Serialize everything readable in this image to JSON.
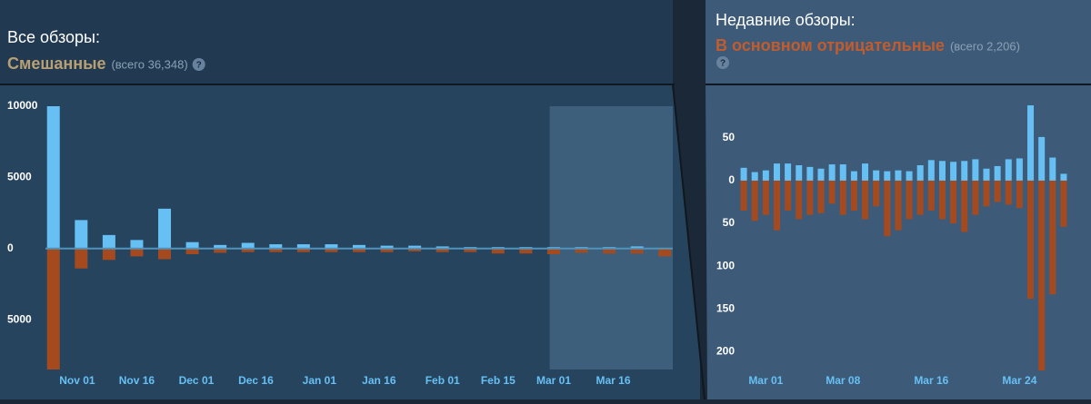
{
  "chart_data": [
    {
      "type": "bar",
      "title": "Все обзоры:",
      "subtitle": "Смешанные",
      "note": "(всего 36,348)",
      "help": "?",
      "x": [
        0,
        7,
        14,
        21,
        28,
        35,
        42,
        49,
        56,
        63,
        70,
        77,
        84,
        91,
        98,
        105,
        112,
        119,
        126,
        133,
        140,
        147,
        154
      ],
      "series": [
        {
          "color": "#66c0f4",
          "values": [
            10000,
            2000,
            950,
            600,
            2800,
            450,
            250,
            400,
            300,
            300,
            300,
            250,
            200,
            200,
            150,
            100,
            100,
            100,
            100,
            100,
            100,
            150,
            50
          ]
        },
        {
          "color": "#a54a1f",
          "values": [
            -8500,
            -1400,
            -800,
            -550,
            -750,
            -400,
            -300,
            -250,
            -250,
            -250,
            -250,
            -250,
            -250,
            -200,
            -250,
            -250,
            -350,
            -350,
            -400,
            -300,
            -350,
            -350,
            -550
          ]
        }
      ],
      "xlim": [
        -2,
        156
      ],
      "xticks": [
        {
          "value": 6,
          "label": "Nov 01"
        },
        {
          "value": 21,
          "label": "Nov 16"
        },
        {
          "value": 36,
          "label": "Dec 01"
        },
        {
          "value": 51,
          "label": "Dec 16"
        },
        {
          "value": 67,
          "label": "Jan 01"
        },
        {
          "value": 82,
          "label": "Jan 16"
        },
        {
          "value": 98,
          "label": "Feb 01"
        },
        {
          "value": 112,
          "label": "Feb 15"
        },
        {
          "value": 126,
          "label": "Mar 01"
        },
        {
          "value": 141,
          "label": "Mar 16"
        }
      ],
      "ylim": [
        -8500,
        10000
      ],
      "yticks": [
        10000,
        5000,
        0,
        {
          "value": -5000,
          "label": "5000"
        }
      ],
      "highlight": [
        125,
        156
      ]
    },
    {
      "type": "bar",
      "title": "Недавние обзоры:",
      "subtitle": "В основном отрицательные",
      "note": "(всего 2,206)",
      "help": "?",
      "x": [
        -2,
        -1,
        0,
        1,
        2,
        3,
        4,
        5,
        6,
        7,
        8,
        9,
        10,
        11,
        12,
        13,
        14,
        15,
        16,
        17,
        18,
        19,
        20,
        21,
        22,
        23,
        24,
        25,
        26,
        27
      ],
      "series": [
        {
          "color": "#66c0f4",
          "values": [
            15,
            10,
            12,
            20,
            20,
            18,
            16,
            14,
            19,
            19,
            11,
            20,
            12,
            11,
            12,
            11,
            18,
            24,
            23,
            22,
            23,
            25,
            14,
            17,
            25,
            26,
            88,
            51,
            27,
            8
          ]
        },
        {
          "color": "#a54a1f",
          "values": [
            -35,
            -47,
            -40,
            -58,
            -35,
            -45,
            -40,
            -38,
            -27,
            -40,
            -35,
            -45,
            -30,
            -65,
            -58,
            -45,
            -40,
            -35,
            -45,
            -50,
            -60,
            -40,
            -30,
            -25,
            -28,
            -32,
            -138,
            -222,
            -133,
            -54
          ]
        }
      ],
      "xlim": [
        -2.5,
        27.5
      ],
      "xticks": [
        {
          "value": 0,
          "label": "Mar 01"
        },
        {
          "value": 7,
          "label": "Mar 08"
        },
        {
          "value": 15,
          "label": "Mar 16"
        },
        {
          "value": 23,
          "label": "Mar 24"
        }
      ],
      "ylim": [
        -224,
        87
      ],
      "yticks": [
        50,
        0,
        {
          "value": -50,
          "label": "50"
        },
        {
          "value": -100,
          "label": "100"
        },
        {
          "value": -150,
          "label": "150"
        },
        {
          "value": -200,
          "label": "200"
        }
      ]
    }
  ]
}
